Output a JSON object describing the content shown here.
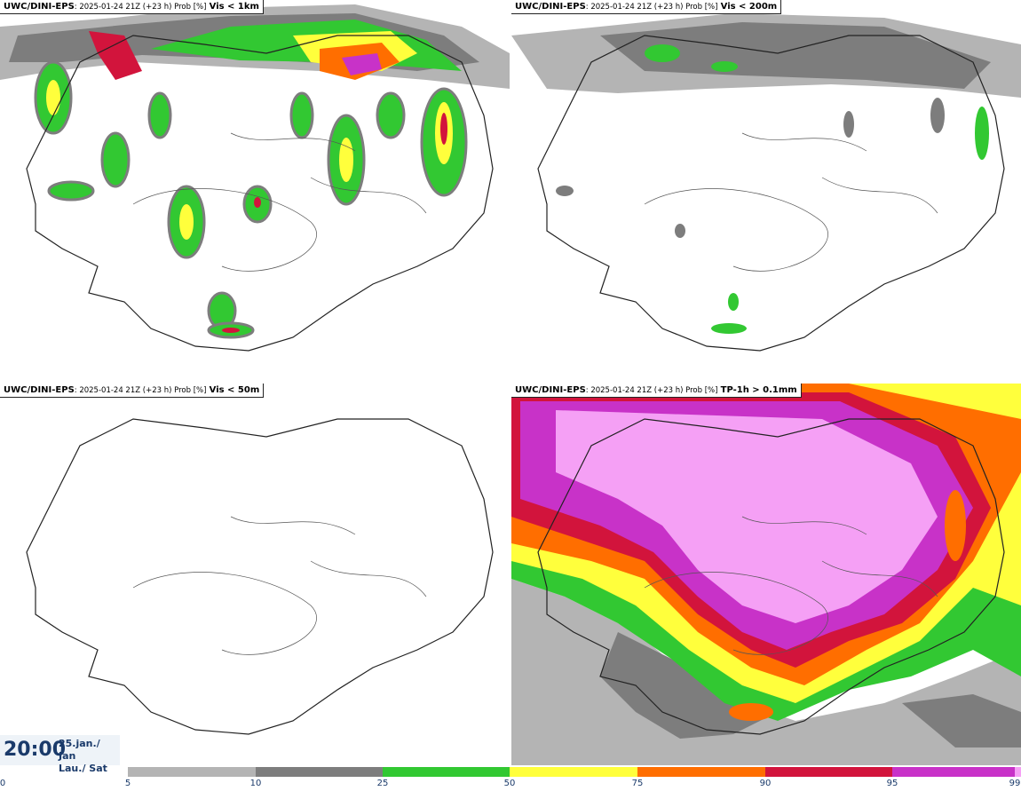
{
  "panels": [
    {
      "model": "UWC/DINI-EPS",
      "meta": ": 2025-01-24 21Z (+23 h) Prob [%]",
      "param": "Vis < 1km"
    },
    {
      "model": "UWC/DINI-EPS",
      "meta": ": 2025-01-24 21Z (+23 h) Prob [%]",
      "param": "Vis < 200m"
    },
    {
      "model": "UWC/DINI-EPS",
      "meta": ": 2025-01-24 21Z (+23 h) Prob [%]",
      "param": "Vis < 50m"
    },
    {
      "model": "UWC/DINI-EPS",
      "meta": ": 2025-01-24 21Z (+23 h) Prob [%]",
      "param": "TP-1h > 0.1mm"
    }
  ],
  "time": {
    "hour": "20:00",
    "date_line1": "25.jan./ Jan",
    "date_line2": "Lau./ Sat"
  },
  "colorbar": {
    "ticks": [
      "0",
      "5",
      "10",
      "25",
      "50",
      "75",
      "90",
      "95",
      "99"
    ],
    "segments": [
      {
        "from": "5",
        "to": "10",
        "color": "#b4b4b4"
      },
      {
        "from": "10",
        "to": "25",
        "color": "#7d7d7d"
      },
      {
        "from": "25",
        "to": "50",
        "color": "#32c832"
      },
      {
        "from": "50",
        "to": "75",
        "color": "#ffff3c"
      },
      {
        "from": "75",
        "to": "90",
        "color": "#ff6e00"
      },
      {
        "from": "90",
        "to": "95",
        "color": "#d2143c"
      },
      {
        "from": "95",
        "to": "99",
        "color": "#c832c8"
      },
      {
        "from": "99",
        "to": "100",
        "color": "#f5a0f5"
      }
    ]
  }
}
